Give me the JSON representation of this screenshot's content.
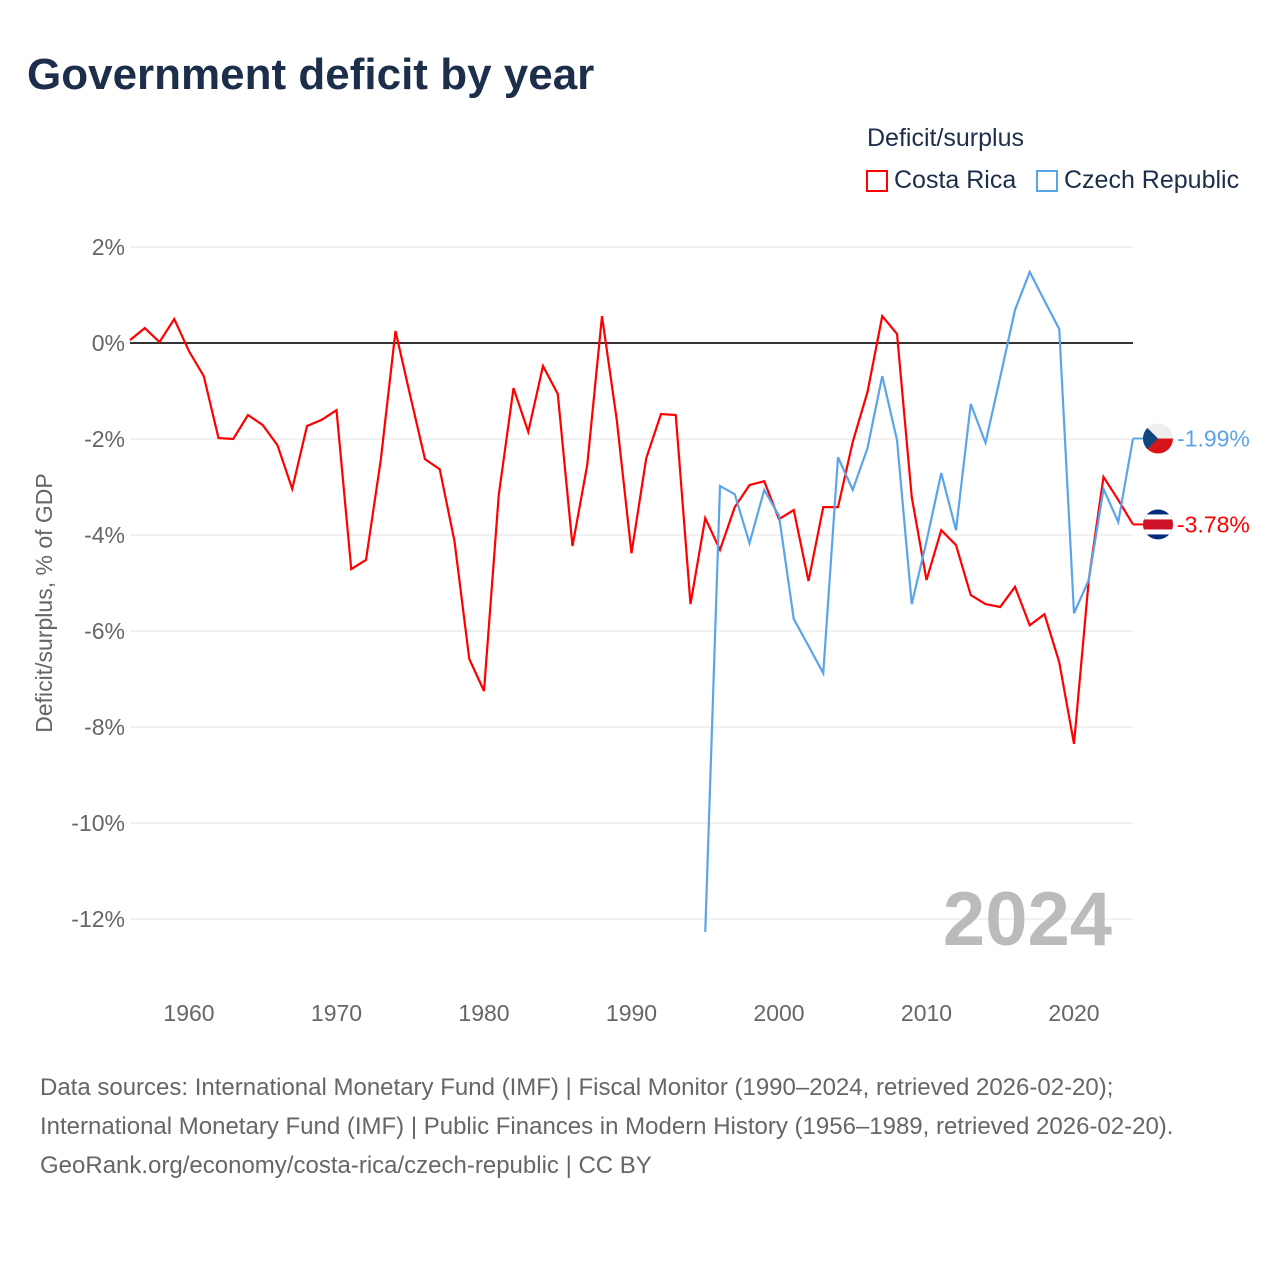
{
  "title": "Government deficit by year",
  "legend": {
    "title": "Deficit/surplus",
    "items": [
      "Costa Rica",
      "Czech Republic"
    ]
  },
  "footer": {
    "line1": "Data sources: International Monetary Fund (IMF) | Fiscal Monitor (1990–2024, retrieved 2026-02-20); International Monetary Fund (IMF) | Public Finances in Modern History (1956–1989, retrieved 2026-02-20).",
    "line2": "GeoRank.org/economy/costa-rica/czech-republic | CC BY"
  },
  "chart_data": {
    "type": "line",
    "title": "Government deficit by year",
    "ylabel": "Deficit/surplus, % of GDP",
    "xlim": [
      1956,
      2024
    ],
    "ylim": [
      -13,
      2.2
    ],
    "yticks": [
      2,
      0,
      -2,
      -4,
      -6,
      -8,
      -10,
      -12
    ],
    "ytick_labels": [
      "2%",
      "0%",
      "-2%",
      "-4%",
      "-6%",
      "-8%",
      "-10%",
      "-12%"
    ],
    "xticks": [
      1960,
      1970,
      1980,
      1990,
      2000,
      2010,
      2020
    ],
    "xtick_labels": [
      "1960",
      "1970",
      "1980",
      "1990",
      "2000",
      "2010",
      "2020"
    ],
    "year_label": "2024",
    "series": [
      {
        "name": "Costa Rica",
        "color": "#ff0000",
        "end_label": "-3.78%",
        "start": 1956,
        "values": [
          0.06,
          0.31,
          0.02,
          0.5,
          -0.17,
          -0.69,
          -1.98,
          -2.0,
          -1.5,
          -1.71,
          -2.13,
          -3.04,
          -1.73,
          -1.6,
          -1.4,
          -4.71,
          -4.52,
          -2.44,
          0.25,
          -1.1,
          -2.42,
          -2.63,
          -4.13,
          -6.58,
          -7.25,
          -3.17,
          -0.94,
          -1.85,
          -0.48,
          -1.06,
          -4.23,
          -2.54,
          0.56,
          -1.6,
          -4.38,
          -2.4,
          -1.48,
          -1.5,
          -5.44,
          -3.65,
          -4.31,
          -3.42,
          -2.96,
          -2.88,
          -3.67,
          -3.48,
          -4.96,
          -3.42,
          -3.42,
          -2.06,
          -1.02,
          0.56,
          0.19,
          -3.21,
          -4.94,
          -3.9,
          -4.21,
          -5.25,
          -5.44,
          -5.5,
          -5.08,
          -5.88,
          -5.65,
          -6.65,
          -8.35,
          -4.94,
          -2.79,
          -3.27,
          -3.78
        ]
      },
      {
        "name": "Czech Republic",
        "color": "#5ba4ea",
        "end_label": "-1.99%",
        "start": 1995,
        "values": [
          -12.27,
          -2.98,
          -3.15,
          -4.17,
          -3.06,
          -3.6,
          -5.75,
          -6.31,
          -6.88,
          -2.38,
          -3.06,
          -2.19,
          -0.69,
          -2.02,
          -5.44,
          -4.13,
          -2.71,
          -3.9,
          -1.27,
          -2.08,
          -0.71,
          0.69,
          1.48,
          0.88,
          0.29,
          -5.63,
          -4.94,
          -3.04,
          -3.73,
          -1.99
        ]
      }
    ]
  }
}
